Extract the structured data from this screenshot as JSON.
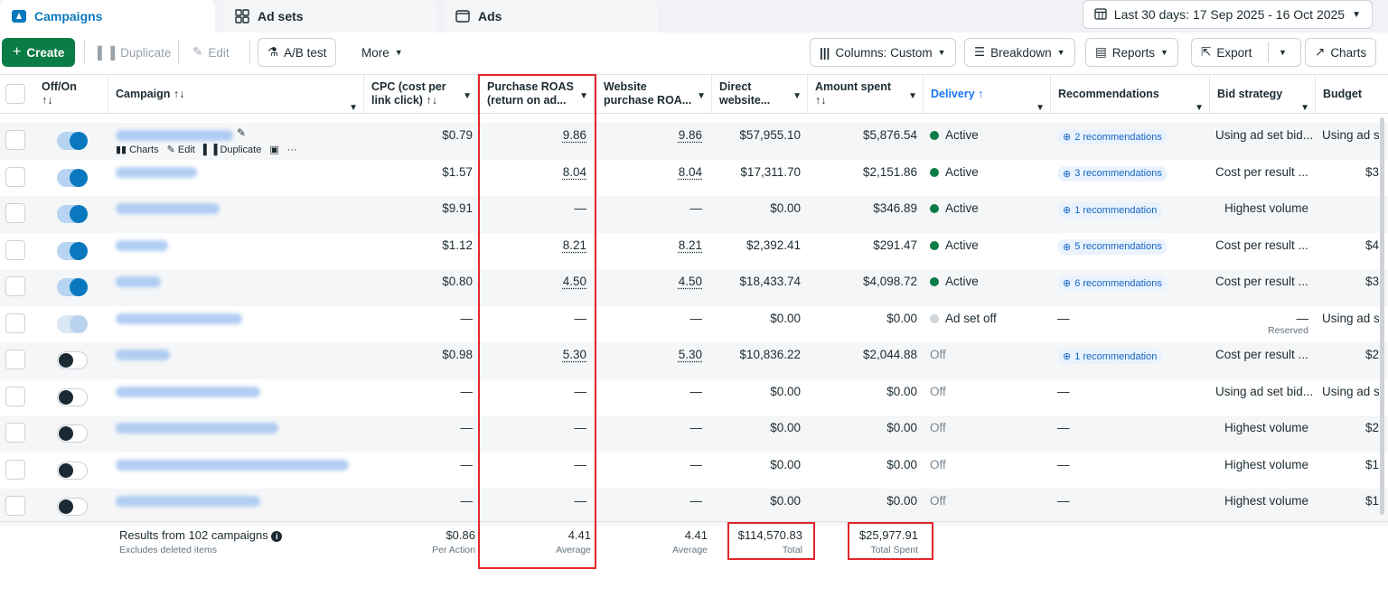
{
  "tabs": [
    {
      "label": "Campaigns",
      "active": true
    },
    {
      "label": "Ad sets",
      "active": false
    },
    {
      "label": "Ads",
      "active": false
    }
  ],
  "date_range": "Last 30 days: 17 Sep 2025 - 16 Oct 2025",
  "toolbar": {
    "create": "Create",
    "duplicate": "Duplicate",
    "edit": "Edit",
    "ab_test": "A/B test",
    "more": "More",
    "columns": "Columns: Custom",
    "breakdown": "Breakdown",
    "reports": "Reports",
    "export": "Export",
    "charts": "Charts"
  },
  "columns": {
    "offon": "Off/On",
    "campaign": "Campaign",
    "cpc1": "CPC (cost per",
    "cpc2": "link click)",
    "roas1": "Purchase ROAS",
    "roas2": "(return on ad...",
    "website1": "Website",
    "website2": "purchase ROA...",
    "direct1": "Direct",
    "direct2": "website...",
    "amount": "Amount spent",
    "delivery": "Delivery",
    "recommendations": "Recommendations",
    "bid": "Bid strategy",
    "budget": "Budget"
  },
  "row_actions": {
    "charts": "Charts",
    "edit": "Edit",
    "duplicate": "Duplicate"
  },
  "rows": [
    {
      "cpc": "$0.79",
      "roas": "9.86",
      "web": "9.86",
      "direct": "$57,955.10",
      "spent": "$5,876.54",
      "delivery": "Active",
      "rec": "2 recommendations",
      "bid": "Using ad set bid...",
      "budget": "Using ad se"
    },
    {
      "cpc": "$1.57",
      "roas": "8.04",
      "web": "8.04",
      "direct": "$17,311.70",
      "spent": "$2,151.86",
      "delivery": "Active",
      "rec": "3 recommendations",
      "bid": "Cost per result ...",
      "budget": "$3"
    },
    {
      "cpc": "$9.91",
      "roas": "—",
      "web": "—",
      "direct": "$0.00",
      "spent": "$346.89",
      "delivery": "Active",
      "rec": "1 recommendation",
      "bid": "Highest volume",
      "budget": ""
    },
    {
      "cpc": "$1.12",
      "roas": "8.21",
      "web": "8.21",
      "direct": "$2,392.41",
      "spent": "$291.47",
      "delivery": "Active",
      "rec": "5 recommendations",
      "bid": "Cost per result ...",
      "budget": "$4"
    },
    {
      "cpc": "$0.80",
      "roas": "4.50",
      "web": "4.50",
      "direct": "$18,433.74",
      "spent": "$4,098.72",
      "delivery": "Active",
      "rec": "6 recommendations",
      "bid": "Cost per result ...",
      "budget": "$3"
    },
    {
      "cpc": "—",
      "roas": "—",
      "web": "—",
      "direct": "$0.00",
      "spent": "$0.00",
      "delivery": "Ad set off",
      "rec": "—",
      "bid": "—",
      "bid_sub": "Reserved",
      "budget": "Using ad set"
    },
    {
      "cpc": "$0.98",
      "roas": "5.30",
      "web": "5.30",
      "direct": "$10,836.22",
      "spent": "$2,044.88",
      "delivery": "Off",
      "rec": "1 recommendation",
      "bid": "Cost per result ...",
      "budget": "$2"
    },
    {
      "cpc": "—",
      "roas": "—",
      "web": "—",
      "direct": "$0.00",
      "spent": "$0.00",
      "delivery": "Off",
      "rec": "—",
      "bid": "Using ad set bid...",
      "budget": "Using ad se"
    },
    {
      "cpc": "—",
      "roas": "—",
      "web": "—",
      "direct": "$0.00",
      "spent": "$0.00",
      "delivery": "Off",
      "rec": "—",
      "bid": "Highest volume",
      "budget": "$2"
    },
    {
      "cpc": "—",
      "roas": "—",
      "web": "—",
      "direct": "$0.00",
      "spent": "$0.00",
      "delivery": "Off",
      "rec": "—",
      "bid": "Highest volume",
      "budget": "$1"
    },
    {
      "cpc": "—",
      "roas": "—",
      "web": "—",
      "direct": "$0.00",
      "spent": "$0.00",
      "delivery": "Off",
      "rec": "—",
      "bid": "Highest volume",
      "budget": "$1"
    }
  ],
  "footer": {
    "results": "Results from 102 campaigns",
    "excludes": "Excludes deleted items",
    "cpc": "$0.86",
    "cpc_label": "Per Action",
    "roas": "4.41",
    "roas_label": "Average",
    "web": "4.41",
    "web_label": "Average",
    "direct": "$114,570.83",
    "direct_label": "Total",
    "spent": "$25,977.91",
    "spent_label": "Total Spent"
  }
}
